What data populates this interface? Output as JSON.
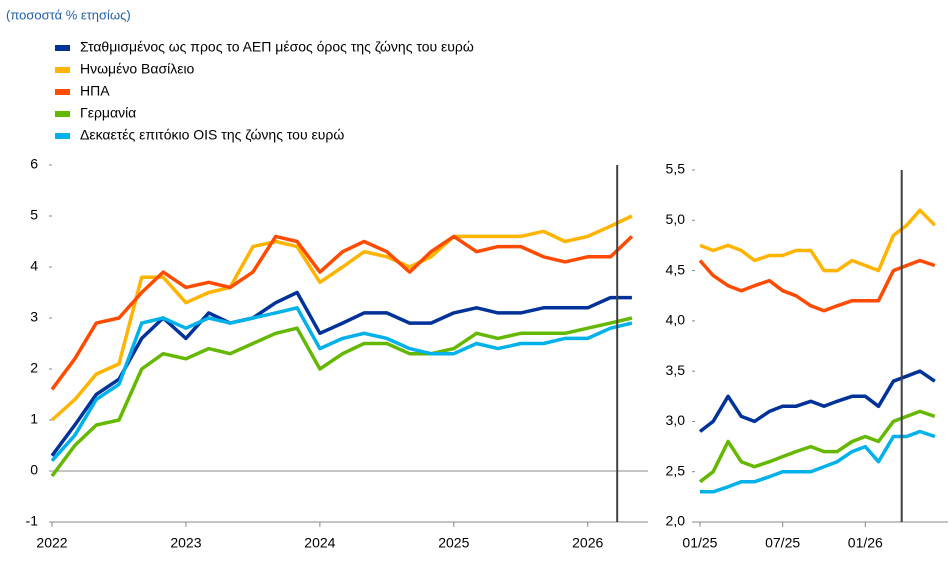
{
  "chart_data": [
    {
      "type": "line",
      "subtitle": "(ποσοστά % ετησίως)",
      "x": [
        2022,
        2022.17,
        2022.33,
        2022.5,
        2022.67,
        2022.83,
        2023,
        2023.17,
        2023.33,
        2023.5,
        2023.67,
        2023.83,
        2024,
        2024.17,
        2024.33,
        2024.5,
        2024.67,
        2024.83,
        2025,
        2025.17,
        2025.33,
        2025.5,
        2025.67,
        2025.83,
        2026,
        2026.17,
        2026.33
      ],
      "series": [
        {
          "name": "Σταθμισμένος ως προς το ΑΕΠ μέσος όρος της ζώνης του ευρώ",
          "color": "#003299",
          "values": [
            0.3,
            0.9,
            1.5,
            1.8,
            2.6,
            3.0,
            2.6,
            3.1,
            2.9,
            3.0,
            3.3,
            3.5,
            2.7,
            2.9,
            3.1,
            3.1,
            2.9,
            2.9,
            3.1,
            3.2,
            3.1,
            3.1,
            3.2,
            3.2,
            3.2,
            3.4,
            3.4
          ]
        },
        {
          "name": "Ηνωμένο Βασίλειο",
          "color": "#ffb400",
          "values": [
            1.0,
            1.4,
            1.9,
            2.1,
            3.8,
            3.8,
            3.3,
            3.5,
            3.6,
            4.4,
            4.5,
            4.4,
            3.7,
            4.0,
            4.3,
            4.2,
            4.0,
            4.2,
            4.6,
            4.6,
            4.6,
            4.6,
            4.7,
            4.5,
            4.6,
            4.8,
            5.0
          ]
        },
        {
          "name": "ΗΠΑ",
          "color": "#ff4b00",
          "values": [
            1.6,
            2.2,
            2.9,
            3.0,
            3.5,
            3.9,
            3.6,
            3.7,
            3.6,
            3.9,
            4.6,
            4.5,
            3.9,
            4.3,
            4.5,
            4.3,
            3.9,
            4.3,
            4.6,
            4.3,
            4.4,
            4.4,
            4.2,
            4.1,
            4.2,
            4.2,
            4.6
          ]
        },
        {
          "name": "Γερμανία",
          "color": "#65b800",
          "values": [
            -0.1,
            0.5,
            0.9,
            1.0,
            2.0,
            2.3,
            2.2,
            2.4,
            2.3,
            2.5,
            2.7,
            2.8,
            2.0,
            2.3,
            2.5,
            2.5,
            2.3,
            2.3,
            2.4,
            2.7,
            2.6,
            2.7,
            2.7,
            2.7,
            2.8,
            2.9,
            3.0
          ]
        },
        {
          "name": "Δεκαετές επιτόκιο OIS της ζώνης του ευρώ",
          "color": "#00b1ea",
          "values": [
            0.2,
            0.7,
            1.4,
            1.7,
            2.9,
            3.0,
            2.8,
            3.0,
            2.9,
            3.0,
            3.1,
            3.2,
            2.4,
            2.6,
            2.7,
            2.6,
            2.4,
            2.3,
            2.3,
            2.5,
            2.4,
            2.5,
            2.5,
            2.6,
            2.6,
            2.8,
            2.9
          ]
        }
      ],
      "xlim": [
        2022,
        2026.45
      ],
      "xticks": [
        2022,
        2023,
        2024,
        2025,
        2026
      ],
      "ylim": [
        -1,
        6
      ],
      "yticks": [
        -1,
        0,
        1,
        2,
        3,
        4,
        5,
        6
      ],
      "vline": 2026.22
    },
    {
      "type": "line",
      "x": [
        2025,
        2025.08,
        2025.17,
        2025.25,
        2025.33,
        2025.42,
        2025.5,
        2025.58,
        2025.67,
        2025.75,
        2025.83,
        2025.92,
        2026,
        2026.08,
        2026.17,
        2026.25,
        2026.33,
        2026.42
      ],
      "series": [
        {
          "color": "#003299",
          "values": [
            2.9,
            3.0,
            3.25,
            3.05,
            3.0,
            3.1,
            3.15,
            3.15,
            3.2,
            3.15,
            3.2,
            3.25,
            3.25,
            3.15,
            3.4,
            3.45,
            3.5,
            3.4
          ]
        },
        {
          "color": "#ffb400",
          "values": [
            4.75,
            4.7,
            4.75,
            4.7,
            4.6,
            4.65,
            4.65,
            4.7,
            4.7,
            4.5,
            4.5,
            4.6,
            4.55,
            4.5,
            4.85,
            4.95,
            5.1,
            4.95
          ]
        },
        {
          "color": "#ff4b00",
          "values": [
            4.6,
            4.45,
            4.35,
            4.3,
            4.35,
            4.4,
            4.3,
            4.25,
            4.15,
            4.1,
            4.15,
            4.2,
            4.2,
            4.2,
            4.5,
            4.55,
            4.6,
            4.55
          ]
        },
        {
          "color": "#65b800",
          "values": [
            2.4,
            2.5,
            2.8,
            2.6,
            2.55,
            2.6,
            2.65,
            2.7,
            2.75,
            2.7,
            2.7,
            2.8,
            2.85,
            2.8,
            3.0,
            3.05,
            3.1,
            3.05
          ]
        },
        {
          "color": "#00b1ea",
          "values": [
            2.3,
            2.3,
            2.35,
            2.4,
            2.4,
            2.45,
            2.5,
            2.5,
            2.5,
            2.55,
            2.6,
            2.7,
            2.75,
            2.6,
            2.85,
            2.85,
            2.9,
            2.85
          ]
        }
      ],
      "xlim": [
        2024.97,
        2026.5
      ],
      "xticks": [
        {
          "value": 2025,
          "label": "01/25"
        },
        {
          "value": 2025.5,
          "label": "07/25"
        },
        {
          "value": 2026,
          "label": "01/26"
        }
      ],
      "ylim": [
        2.0,
        5.5
      ],
      "yticks": [
        {
          "value": 2.0,
          "label": "2,0"
        },
        {
          "value": 2.5,
          "label": "2,5"
        },
        {
          "value": 3.0,
          "label": "3,0"
        },
        {
          "value": 3.5,
          "label": "3,5"
        },
        {
          "value": 4.0,
          "label": "4,0"
        },
        {
          "value": 4.5,
          "label": "4,5"
        },
        {
          "value": 5.0,
          "label": "5,0"
        },
        {
          "value": 5.5,
          "label": "5,5"
        }
      ],
      "vline": 2026.22
    }
  ]
}
